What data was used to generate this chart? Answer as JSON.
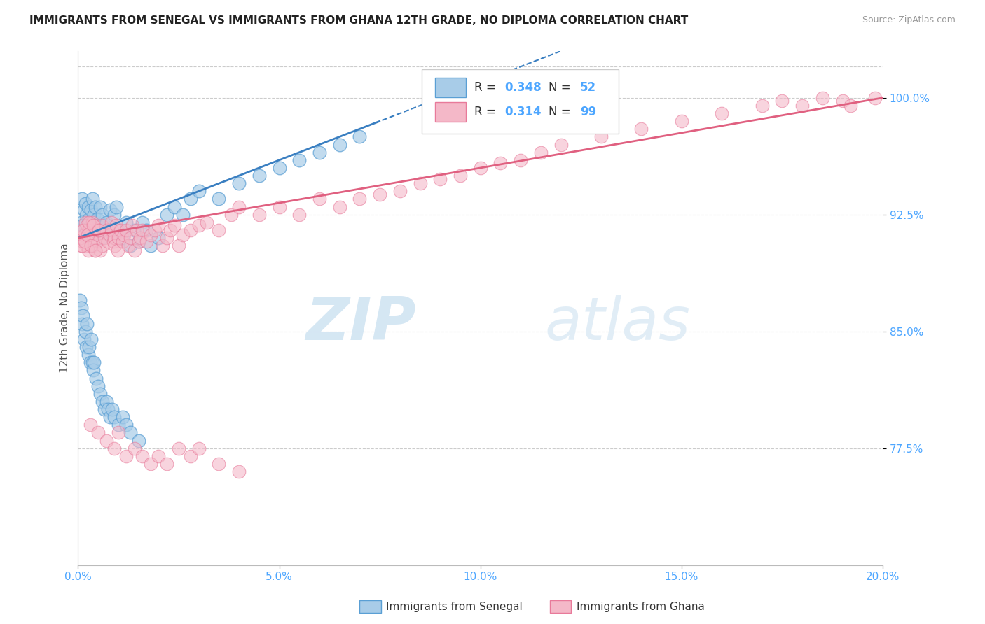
{
  "title": "IMMIGRANTS FROM SENEGAL VS IMMIGRANTS FROM GHANA 12TH GRADE, NO DIPLOMA CORRELATION CHART",
  "source": "Source: ZipAtlas.com",
  "ylabel": "12th Grade, No Diploma",
  "xmin": 0.0,
  "xmax": 20.0,
  "ymin": 70.0,
  "ymax": 103.0,
  "yticks": [
    77.5,
    85.0,
    92.5,
    100.0
  ],
  "ytick_labels": [
    "77.5%",
    "85.0%",
    "92.5%",
    "100.0%"
  ],
  "xticks": [
    0,
    5,
    10,
    15,
    20
  ],
  "xtick_labels": [
    "0.0%",
    "5.0%",
    "10.0%",
    "15.0%",
    "20.0%"
  ],
  "legend_R_senegal": "0.348",
  "legend_N_senegal": "52",
  "legend_R_ghana": "0.314",
  "legend_N_ghana": "99",
  "color_senegal_fill": "#a8cce8",
  "color_senegal_edge": "#5a9fd4",
  "color_senegal_line": "#3a7fc1",
  "color_ghana_fill": "#f4b8c8",
  "color_ghana_edge": "#e87a9a",
  "color_ghana_line": "#e06080",
  "color_axis_label": "#4da6ff",
  "color_grid": "#cccccc",
  "color_title": "#222222",
  "color_source": "#999999",
  "watermark_zip": "ZIP",
  "watermark_atlas": "atlas",
  "senegal_x": [
    0.05,
    0.08,
    0.1,
    0.12,
    0.15,
    0.18,
    0.2,
    0.22,
    0.25,
    0.28,
    0.3,
    0.32,
    0.35,
    0.38,
    0.4,
    0.42,
    0.45,
    0.48,
    0.5,
    0.55,
    0.58,
    0.6,
    0.65,
    0.7,
    0.75,
    0.8,
    0.85,
    0.9,
    0.95,
    1.0,
    1.1,
    1.2,
    1.3,
    1.4,
    1.5,
    1.6,
    1.7,
    1.8,
    2.0,
    2.2,
    2.4,
    2.6,
    2.8,
    3.0,
    3.5,
    4.0,
    4.5,
    5.0,
    5.5,
    6.0,
    6.5,
    7.0
  ],
  "senegal_y": [
    91.5,
    92.0,
    93.5,
    91.8,
    92.8,
    93.2,
    92.5,
    91.0,
    93.0,
    92.2,
    91.5,
    92.8,
    93.5,
    91.0,
    92.5,
    93.0,
    91.8,
    92.2,
    91.5,
    93.0,
    91.0,
    92.5,
    91.8,
    92.0,
    91.5,
    92.8,
    91.2,
    92.5,
    93.0,
    91.5,
    91.0,
    92.0,
    90.5,
    91.5,
    90.8,
    92.0,
    91.5,
    90.5,
    91.0,
    92.5,
    93.0,
    92.5,
    93.5,
    94.0,
    93.5,
    94.5,
    95.0,
    95.5,
    96.0,
    96.5,
    97.0,
    97.5
  ],
  "ghana_x": [
    0.05,
    0.08,
    0.1,
    0.12,
    0.15,
    0.18,
    0.2,
    0.22,
    0.25,
    0.28,
    0.3,
    0.32,
    0.35,
    0.38,
    0.4,
    0.42,
    0.45,
    0.48,
    0.5,
    0.55,
    0.58,
    0.6,
    0.65,
    0.7,
    0.75,
    0.8,
    0.82,
    0.85,
    0.88,
    0.9,
    0.92,
    0.95,
    0.98,
    1.0,
    1.05,
    1.1,
    1.15,
    1.2,
    1.25,
    1.3,
    1.35,
    1.4,
    1.45,
    1.5,
    1.55,
    1.6,
    1.7,
    1.8,
    1.9,
    2.0,
    2.1,
    2.2,
    2.3,
    2.4,
    2.5,
    2.6,
    2.8,
    3.0,
    3.2,
    3.5,
    3.8,
    4.0,
    4.5,
    5.0,
    5.5,
    6.0,
    6.5,
    7.0,
    7.5,
    8.0,
    8.5,
    9.0,
    9.5,
    10.0,
    10.5,
    11.0,
    11.5,
    12.0,
    13.0,
    14.0,
    15.0,
    16.0,
    17.0,
    17.5,
    18.0,
    18.5,
    19.0,
    19.2,
    0.06,
    0.09,
    0.13,
    0.16,
    0.23,
    0.27,
    0.33,
    0.37,
    0.43,
    0.52,
    19.8
  ],
  "ghana_y": [
    91.0,
    90.5,
    91.5,
    90.8,
    91.2,
    92.0,
    90.5,
    91.8,
    90.2,
    91.5,
    90.8,
    91.2,
    92.0,
    90.5,
    91.8,
    90.2,
    91.0,
    90.8,
    91.5,
    90.2,
    91.8,
    90.5,
    91.0,
    91.5,
    90.8,
    91.2,
    92.0,
    91.5,
    90.8,
    91.0,
    90.5,
    91.8,
    90.2,
    91.0,
    91.5,
    90.8,
    91.2,
    91.5,
    90.5,
    91.0,
    91.8,
    90.2,
    91.5,
    90.8,
    91.0,
    91.5,
    90.8,
    91.2,
    91.5,
    91.8,
    90.5,
    91.0,
    91.5,
    91.8,
    90.5,
    91.2,
    91.5,
    91.8,
    92.0,
    91.5,
    92.5,
    93.0,
    92.5,
    93.0,
    92.5,
    93.5,
    93.0,
    93.5,
    93.8,
    94.0,
    94.5,
    94.8,
    95.0,
    95.5,
    95.8,
    96.0,
    96.5,
    97.0,
    97.5,
    98.0,
    98.5,
    99.0,
    99.5,
    99.8,
    99.5,
    100.0,
    99.8,
    99.5,
    91.0,
    90.5,
    91.5,
    90.8,
    91.2,
    92.0,
    90.5,
    91.8,
    90.2,
    91.5,
    100.0
  ],
  "senegal_low_x": [
    0.05,
    0.08,
    0.1,
    0.12,
    0.15,
    0.18,
    0.2,
    0.22,
    0.25,
    0.28,
    0.3,
    0.32,
    0.35,
    0.38,
    0.4,
    0.45,
    0.5,
    0.55,
    0.6,
    0.65,
    0.7,
    0.75,
    0.8,
    0.85,
    0.9,
    1.0,
    1.1,
    1.2,
    1.3,
    1.5
  ],
  "senegal_low_y": [
    87.0,
    86.5,
    85.5,
    86.0,
    84.5,
    85.0,
    84.0,
    85.5,
    83.5,
    84.0,
    83.0,
    84.5,
    83.0,
    82.5,
    83.0,
    82.0,
    81.5,
    81.0,
    80.5,
    80.0,
    80.5,
    80.0,
    79.5,
    80.0,
    79.5,
    79.0,
    79.5,
    79.0,
    78.5,
    78.0
  ],
  "ghana_low_x": [
    0.3,
    0.5,
    0.7,
    0.9,
    1.0,
    1.2,
    1.4,
    1.6,
    1.8,
    2.0,
    2.2,
    2.5,
    2.8,
    3.0,
    3.5,
    4.0
  ],
  "ghana_low_y": [
    79.0,
    78.5,
    78.0,
    77.5,
    78.5,
    77.0,
    77.5,
    77.0,
    76.5,
    77.0,
    76.5,
    77.5,
    77.0,
    77.5,
    76.5,
    76.0
  ]
}
